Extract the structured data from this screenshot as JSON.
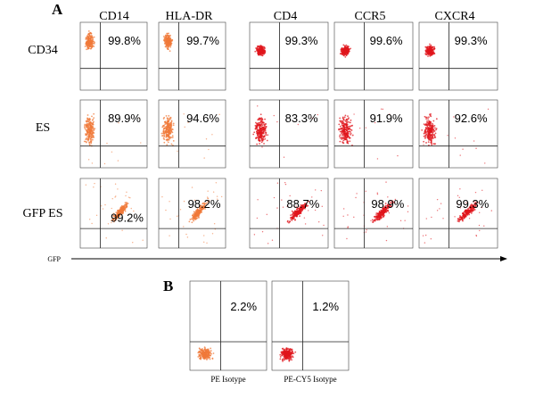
{
  "panel_a": {
    "label": "A",
    "columns": [
      "CD14",
      "HLA-DR",
      "CD4",
      "CCR5",
      "CXCR4"
    ],
    "rows": [
      {
        "label": "CD34",
        "values": [
          "99.8%",
          "99.7%",
          "99.3%",
          "99.6%",
          "99.3%"
        ]
      },
      {
        "label": "ES",
        "values": [
          "89.9%",
          "94.6%",
          "83.3%",
          "91.9%",
          "92.6%"
        ]
      },
      {
        "label": "GFP ES",
        "values": [
          "99.2%",
          "98.2%",
          "88.7%",
          "98.9%",
          "99.3%"
        ]
      }
    ],
    "x_axis_label": "GFP"
  },
  "panel_b": {
    "label": "B",
    "plots": [
      {
        "value": "2.2%",
        "caption": "PE Isotype"
      },
      {
        "value": "1.2%",
        "caption": "PE-CY5 Isotype"
      }
    ]
  }
}
